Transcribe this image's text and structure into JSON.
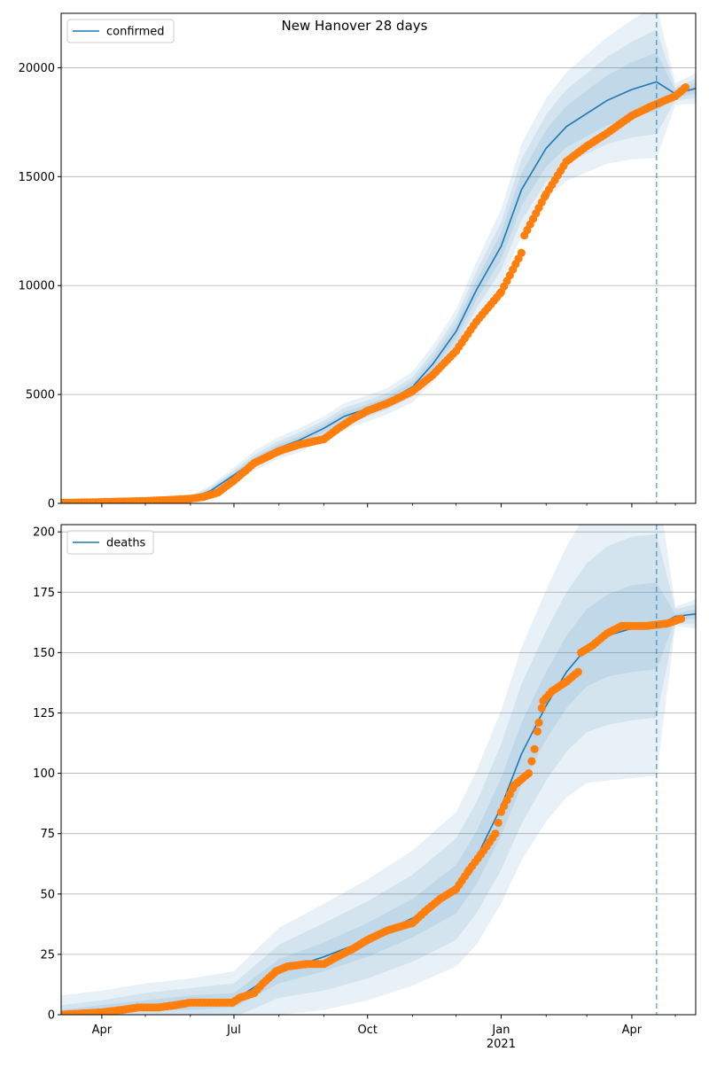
{
  "figure": {
    "title": "New Hanover 28 days",
    "colors": {
      "model_line": "#1f77b4",
      "observed": "#ff7f0e",
      "band": "#1f77b4",
      "grid": "#b0b0b0",
      "forecast_line": "#1f77b4"
    },
    "x_ticks": [
      {
        "date": "2020-04-01",
        "label": "Apr"
      },
      {
        "date": "2020-07-01",
        "label": "Jul"
      },
      {
        "date": "2020-10-01",
        "label": "Oct"
      },
      {
        "date": "2021-01-01",
        "label": "Jan",
        "sublabel": "2021"
      },
      {
        "date": "2021-04-01",
        "label": "Apr"
      }
    ],
    "x_minor_ticks": [
      "2020-05-01",
      "2020-06-01",
      "2020-08-01",
      "2020-09-01",
      "2020-11-01",
      "2020-12-01",
      "2021-02-01",
      "2021-03-01",
      "2021-05-01"
    ],
    "xlim": [
      "2020-03-04",
      "2021-05-15"
    ],
    "forecast_start": "2021-04-18"
  },
  "chart_data": [
    {
      "type": "line",
      "legend": "confirmed",
      "legend_placement": "top-left",
      "grid": "horizontal",
      "ylim": [
        0,
        22500
      ],
      "y_ticks": [
        0,
        5000,
        10000,
        15000,
        20000
      ],
      "x_dates": [
        "2020-03-04",
        "2020-04-01",
        "2020-05-01",
        "2020-06-01",
        "2020-06-15",
        "2020-07-01",
        "2020-07-15",
        "2020-08-01",
        "2020-08-15",
        "2020-09-01",
        "2020-09-15",
        "2020-10-01",
        "2020-10-15",
        "2020-11-01",
        "2020-11-15",
        "2020-12-01",
        "2020-12-15",
        "2021-01-01",
        "2021-01-15",
        "2021-02-01",
        "2021-02-15",
        "2021-03-01",
        "2021-03-15",
        "2021-04-01",
        "2021-04-18",
        "2021-05-01",
        "2021-05-15"
      ],
      "model": [
        30,
        60,
        110,
        220,
        580,
        1300,
        1950,
        2550,
        2900,
        3450,
        4000,
        4350,
        4700,
        5350,
        6400,
        7900,
        9800,
        11800,
        14400,
        16300,
        17300,
        17900,
        18500,
        19000,
        19350,
        18800,
        19050
      ],
      "band_widths": [
        [
          40,
          60,
          90,
          140,
          250,
          350,
          450,
          500,
          550,
          550,
          600,
          600,
          600,
          700,
          850,
          1000,
          1300,
          1700,
          2100,
          2300,
          2500,
          2700,
          2900,
          3200,
          3500,
          500,
          700
        ],
        [
          20,
          35,
          55,
          90,
          160,
          220,
          280,
          320,
          350,
          350,
          380,
          380,
          380,
          450,
          550,
          650,
          850,
          1100,
          1400,
          1550,
          1700,
          1850,
          2000,
          2200,
          2400,
          300,
          450
        ],
        [
          10,
          18,
          30,
          50,
          90,
          120,
          150,
          170,
          190,
          190,
          200,
          200,
          200,
          240,
          300,
          350,
          450,
          600,
          750,
          850,
          950,
          1050,
          1150,
          1250,
          1350,
          150,
          250
        ]
      ],
      "observed": [
        [
          "2020-03-04",
          20
        ],
        [
          "2020-04-01",
          60
        ],
        [
          "2020-05-01",
          110
        ],
        [
          "2020-05-15",
          150
        ],
        [
          "2020-06-01",
          210
        ],
        [
          "2020-06-10",
          300
        ],
        [
          "2020-06-20",
          500
        ],
        [
          "2020-07-01",
          1050
        ],
        [
          "2020-07-15",
          1850
        ],
        [
          "2020-08-01",
          2400
        ],
        [
          "2020-08-15",
          2700
        ],
        [
          "2020-09-01",
          2950
        ],
        [
          "2020-09-10",
          3400
        ],
        [
          "2020-09-20",
          3850
        ],
        [
          "2020-10-01",
          4250
        ],
        [
          "2020-10-15",
          4600
        ],
        [
          "2020-11-01",
          5150
        ],
        [
          "2020-11-15",
          5900
        ],
        [
          "2020-12-01",
          7000
        ],
        [
          "2020-12-15",
          8350
        ],
        [
          "2021-01-01",
          9700
        ],
        [
          "2021-01-15",
          11500
        ],
        [
          "2021-01-17",
          12300
        ],
        [
          "2021-02-01",
          14200
        ],
        [
          "2021-02-15",
          15700
        ],
        [
          "2021-03-01",
          16400
        ],
        [
          "2021-03-15",
          17000
        ],
        [
          "2021-04-01",
          17800
        ],
        [
          "2021-04-15",
          18250
        ],
        [
          "2021-05-01",
          18700
        ],
        [
          "2021-05-08",
          19100
        ]
      ]
    },
    {
      "type": "line",
      "legend": "deaths",
      "legend_placement": "top-left",
      "grid": "horizontal",
      "ylim": [
        0,
        203
      ],
      "y_ticks": [
        0,
        25,
        50,
        75,
        100,
        125,
        150,
        175,
        200
      ],
      "x_dates": [
        "2020-03-04",
        "2020-04-01",
        "2020-05-01",
        "2020-06-01",
        "2020-07-01",
        "2020-08-01",
        "2020-09-01",
        "2020-10-01",
        "2020-11-01",
        "2020-12-01",
        "2020-12-15",
        "2021-01-01",
        "2021-01-15",
        "2021-02-01",
        "2021-02-15",
        "2021-03-01",
        "2021-03-15",
        "2021-04-01",
        "2021-04-18",
        "2021-05-01",
        "2021-05-15"
      ],
      "model": [
        0,
        2,
        4,
        5,
        6,
        18,
        24,
        31,
        40,
        52,
        65,
        86,
        108,
        128,
        142,
        152,
        157,
        160,
        161,
        165,
        166
      ],
      "band_widths": [
        [
          8,
          8,
          9,
          10,
          12,
          18,
          22,
          25,
          28,
          32,
          36,
          40,
          44,
          48,
          52,
          56,
          60,
          62,
          62,
          4,
          6
        ],
        [
          4,
          4,
          5,
          6,
          7,
          11,
          14,
          16,
          18,
          21,
          23,
          26,
          29,
          31,
          33,
          35,
          37,
          38,
          38,
          3,
          4
        ],
        [
          2,
          2,
          2,
          3,
          3,
          5,
          6,
          7,
          8,
          10,
          11,
          12,
          13,
          14,
          15,
          16,
          17,
          18,
          18,
          1,
          2
        ]
      ],
      "observed": [
        [
          "2020-03-04",
          0
        ],
        [
          "2020-04-01",
          1
        ],
        [
          "2020-04-15",
          2
        ],
        [
          "2020-04-26",
          3
        ],
        [
          "2020-05-10",
          3
        ],
        [
          "2020-05-22",
          4
        ],
        [
          "2020-06-01",
          5
        ],
        [
          "2020-06-15",
          5
        ],
        [
          "2020-06-30",
          5
        ],
        [
          "2020-07-05",
          7
        ],
        [
          "2020-07-15",
          9
        ],
        [
          "2020-07-21",
          13
        ],
        [
          "2020-07-30",
          18
        ],
        [
          "2020-08-07",
          20
        ],
        [
          "2020-08-20",
          21
        ],
        [
          "2020-09-01",
          21
        ],
        [
          "2020-09-10",
          24
        ],
        [
          "2020-09-20",
          27
        ],
        [
          "2020-10-01",
          31
        ],
        [
          "2020-10-15",
          35
        ],
        [
          "2020-11-01",
          38
        ],
        [
          "2020-11-10",
          43
        ],
        [
          "2020-11-20",
          48
        ],
        [
          "2020-12-01",
          52
        ],
        [
          "2020-12-10",
          60
        ],
        [
          "2020-12-20",
          68
        ],
        [
          "2020-12-28",
          75
        ],
        [
          "2021-01-01",
          84
        ],
        [
          "2021-01-10",
          95
        ],
        [
          "2021-01-20",
          100
        ],
        [
          "2021-01-24",
          110
        ],
        [
          "2021-01-27",
          121
        ],
        [
          "2021-01-30",
          130
        ],
        [
          "2021-02-05",
          134
        ],
        [
          "2021-02-15",
          138
        ],
        [
          "2021-02-23",
          142
        ],
        [
          "2021-02-25",
          150
        ],
        [
          "2021-03-05",
          153
        ],
        [
          "2021-03-15",
          158
        ],
        [
          "2021-03-25",
          161
        ],
        [
          "2021-04-10",
          161
        ],
        [
          "2021-04-25",
          162
        ],
        [
          "2021-05-05",
          164
        ]
      ]
    }
  ]
}
